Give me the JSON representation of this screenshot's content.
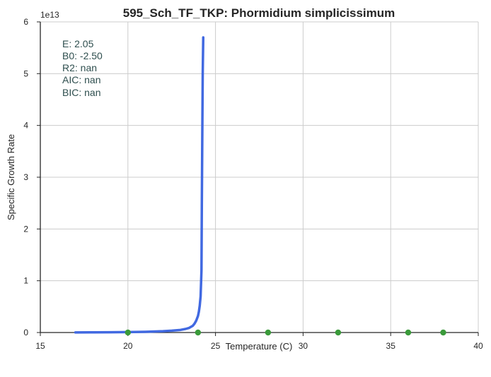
{
  "chart_data": {
    "type": "line",
    "title": "595_Sch_TF_TKP: Phormidium simplicissimum",
    "xlabel": "Temperature (C)",
    "ylabel": "Specific Growth Rate",
    "y_offset_label": "1e13",
    "xlim": [
      15,
      40
    ],
    "ylim": [
      0,
      6
    ],
    "y_scale": 10000000000000.0,
    "x_ticks": [
      "15",
      "20",
      "25",
      "30",
      "35",
      "40"
    ],
    "y_ticks": [
      "0",
      "1",
      "2",
      "3",
      "4",
      "5",
      "6"
    ],
    "grid": true,
    "annotation": [
      "E:  2.05",
      "B0:  -2.50",
      "R2:  nan",
      "AIC: nan",
      "BIC: nan"
    ],
    "series": [
      {
        "kind": "line",
        "color": "#4169e1",
        "x": [
          17.0,
          18.0,
          19.0,
          20.0,
          21.0,
          22.0,
          22.5,
          23.0,
          23.3,
          23.5,
          23.7,
          23.8,
          23.9,
          24.0,
          24.05,
          24.1,
          24.15,
          24.2,
          24.22,
          24.25,
          24.27,
          24.3
        ],
        "y": [
          0.002,
          0.003,
          0.005,
          0.008,
          0.013,
          0.025,
          0.035,
          0.05,
          0.07,
          0.09,
          0.13,
          0.17,
          0.23,
          0.32,
          0.4,
          0.52,
          0.7,
          1.2,
          2.5,
          4.0,
          5.0,
          5.7
        ]
      },
      {
        "kind": "points",
        "color": "#3a9a3a",
        "x": [
          20,
          24,
          28,
          32,
          36,
          38
        ],
        "y": [
          0,
          0,
          0,
          0,
          0,
          0
        ]
      }
    ]
  }
}
